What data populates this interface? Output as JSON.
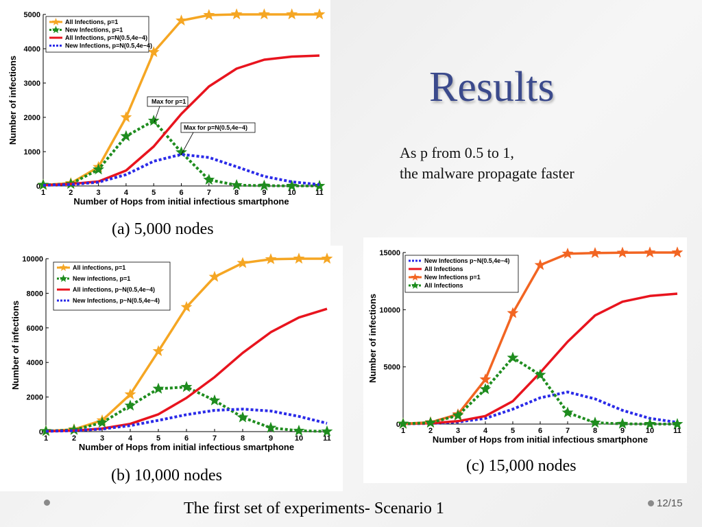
{
  "slide": {
    "title": "Results",
    "text_line1": "As p from 0.5 to 1,",
    "text_line2": "the malware propagate faster",
    "footer": "The first set of experiments- Scenario 1",
    "page_number": "12/15"
  },
  "chart_data": [
    {
      "type": "line",
      "caption": "(a)  5,000  nodes",
      "xlabel": "Number of Hops from initial infectious smartphone",
      "ylabel": "Number of infections",
      "x": [
        1,
        2,
        3,
        4,
        5,
        6,
        7,
        8,
        9,
        10,
        11
      ],
      "xlim": [
        1,
        11
      ],
      "ylim": [
        0,
        5000
      ],
      "yticks": [
        0,
        1000,
        2000,
        3000,
        4000,
        5000
      ],
      "legend_position": "top-left",
      "series": [
        {
          "name": "All Infections, p=1",
          "color": "#f5a623",
          "style": "solid",
          "marker": "star",
          "values": [
            30,
            80,
            550,
            2000,
            3900,
            4820,
            4980,
            5000,
            5000,
            5000,
            5000
          ]
        },
        {
          "name": "New Infections, p=1",
          "color": "#1e8c1e",
          "style": "dotted",
          "marker": "star",
          "values": [
            30,
            60,
            480,
            1450,
            1900,
            980,
            180,
            25,
            8,
            3,
            1
          ]
        },
        {
          "name": "All Infections, p=N(0.5,4e−4)",
          "color": "#e8141e",
          "style": "solid",
          "marker": "none",
          "values": [
            20,
            60,
            130,
            450,
            1150,
            2100,
            2900,
            3420,
            3680,
            3770,
            3800
          ]
        },
        {
          "name": "New Infections, p=N(0.5,4e−4)",
          "color": "#2a2ae8",
          "style": "dotted",
          "marker": "none",
          "values": [
            20,
            40,
            110,
            330,
            720,
            920,
            830,
            560,
            280,
            120,
            40
          ]
        }
      ],
      "annotations": [
        {
          "text": "Max for p=1"
        },
        {
          "text": "Max for p=N(0.5,4e−4)"
        }
      ]
    },
    {
      "type": "line",
      "caption": "(b)  10,000  nodes",
      "xlabel": "Number of Hops from initial infectious smartphone",
      "ylabel": "Number of infections",
      "x": [
        1,
        2,
        3,
        4,
        5,
        6,
        7,
        8,
        9,
        10,
        11
      ],
      "xlim": [
        1,
        11
      ],
      "ylim": [
        0,
        10000
      ],
      "yticks": [
        0,
        2000,
        4000,
        6000,
        8000,
        10000
      ],
      "legend_position": "top-left",
      "series": [
        {
          "name": "All infections, p=1",
          "color": "#f5a623",
          "style": "solid",
          "marker": "star",
          "values": [
            30,
            130,
            650,
            2150,
            4650,
            7200,
            8950,
            9750,
            9970,
            10000,
            10000
          ]
        },
        {
          "name": "New infections, p=1",
          "color": "#1e8c1e",
          "style": "dotted",
          "marker": "star",
          "values": [
            30,
            100,
            520,
            1500,
            2480,
            2580,
            1800,
            820,
            220,
            50,
            10
          ]
        },
        {
          "name": "All infections, p~N(0.5,4e−4)",
          "color": "#e8141e",
          "style": "solid",
          "marker": "none",
          "values": [
            20,
            60,
            180,
            450,
            1000,
            1950,
            3150,
            4550,
            5750,
            6600,
            7100
          ]
        },
        {
          "name": "New Infections, p~N(0.5,4e−4)",
          "color": "#2a2ae8",
          "style": "dotted",
          "marker": "none",
          "values": [
            20,
            50,
            150,
            350,
            650,
            980,
            1230,
            1300,
            1190,
            880,
            480
          ]
        }
      ]
    },
    {
      "type": "line",
      "caption": "(c)  15,000  nodes",
      "xlabel": "Number of Hops from initial infectious smartphone",
      "ylabel": "Number of infections",
      "x": [
        1,
        2,
        3,
        4,
        5,
        6,
        7,
        8,
        9,
        10,
        11
      ],
      "xlim": [
        1,
        11
      ],
      "ylim": [
        0,
        15000
      ],
      "yticks": [
        0,
        5000,
        10000,
        15000
      ],
      "legend_position": "top-left",
      "series": [
        {
          "name": "New Infections p~N(0.5,4e−4)",
          "color": "#2a2ae8",
          "style": "dotted",
          "marker": "none",
          "values": [
            20,
            60,
            180,
            500,
            1300,
            2300,
            2800,
            2200,
            1200,
            500,
            150
          ]
        },
        {
          "name": "All Infections",
          "color": "#e8141e",
          "style": "solid",
          "marker": "none",
          "values": [
            20,
            80,
            250,
            700,
            2000,
            4500,
            7200,
            9500,
            10700,
            11200,
            11400
          ]
        },
        {
          "name": "New Infections p=1",
          "color": "#f26522",
          "style": "solid",
          "marker": "star",
          "values": [
            30,
            150,
            850,
            3900,
            9700,
            13900,
            14900,
            14950,
            14980,
            15000,
            15000
          ]
        },
        {
          "name": "All Infections",
          "color": "#1e8c1e",
          "style": "dotted",
          "marker": "star",
          "values": [
            30,
            120,
            750,
            3050,
            5800,
            4300,
            1000,
            120,
            20,
            5,
            1
          ]
        }
      ]
    }
  ]
}
